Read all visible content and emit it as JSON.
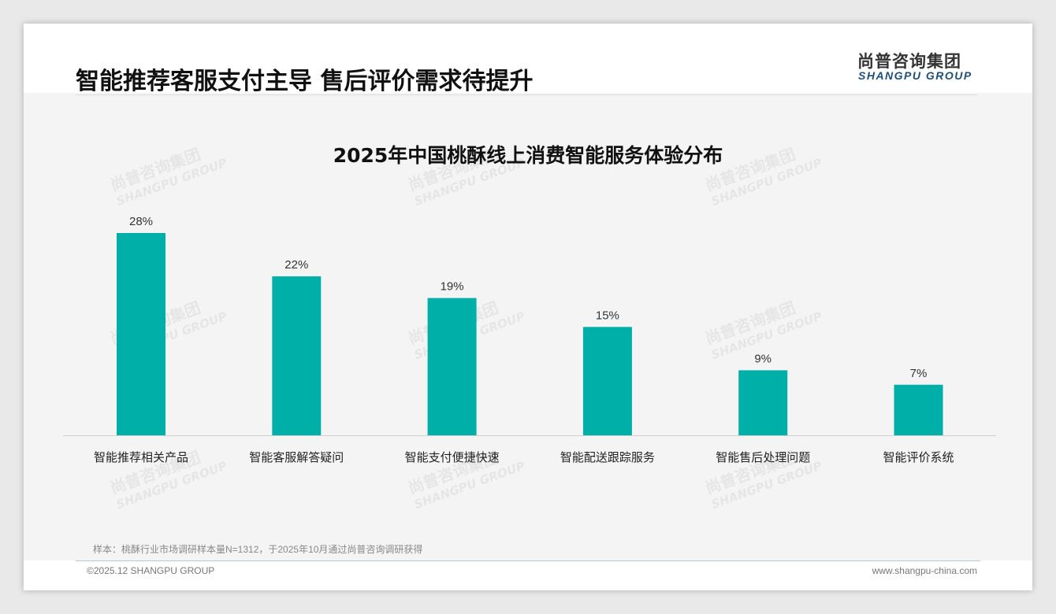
{
  "header": {
    "title": "智能推荐客服支付主导 售后评价需求待提升",
    "logo_cn": "尚普咨询集团",
    "logo_en": "SHANGPU GROUP"
  },
  "chart_data": {
    "type": "bar",
    "title": "2025年中国桃酥线上消费智能服务体验分布",
    "categories": [
      "智能推荐相关产品",
      "智能客服解答疑问",
      "智能支付便捷快速",
      "智能配送跟踪服务",
      "智能售后处理问题",
      "智能评价系统"
    ],
    "values": [
      28,
      22,
      19,
      15,
      9,
      7
    ],
    "value_labels": [
      "28%",
      "22%",
      "19%",
      "15%",
      "9%",
      "7%"
    ],
    "unit": "%",
    "ylim": [
      0,
      30
    ],
    "grid": false,
    "color": "#00b0a8"
  },
  "footer": {
    "note": "样本：桃酥行业市场调研样本量N=1312，于2025年10月通过尚普咨询调研获得",
    "copyright": "©2025.12 SHANGPU GROUP",
    "url": "www.shangpu-china.com"
  }
}
